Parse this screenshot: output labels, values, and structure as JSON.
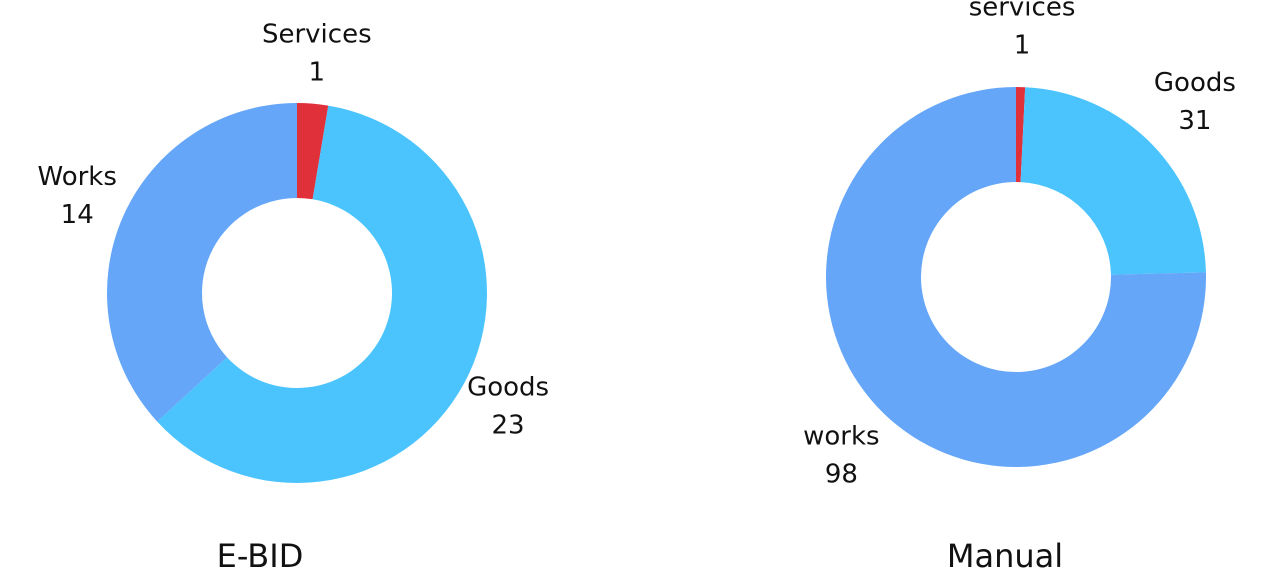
{
  "chart_data": [
    {
      "type": "pie",
      "title": "E-BID",
      "categories": [
        "Services",
        "Goods",
        "Works"
      ],
      "values": [
        1,
        23,
        14
      ],
      "colors": [
        "#e0313a",
        "#4bc4fe",
        "#65a6f9"
      ]
    },
    {
      "type": "pie",
      "title": "Manual",
      "categories": [
        "services",
        "Goods",
        "works"
      ],
      "values": [
        1,
        31,
        98
      ],
      "colors": [
        "#e0313a",
        "#4bc4fe",
        "#65a6f9"
      ]
    }
  ]
}
